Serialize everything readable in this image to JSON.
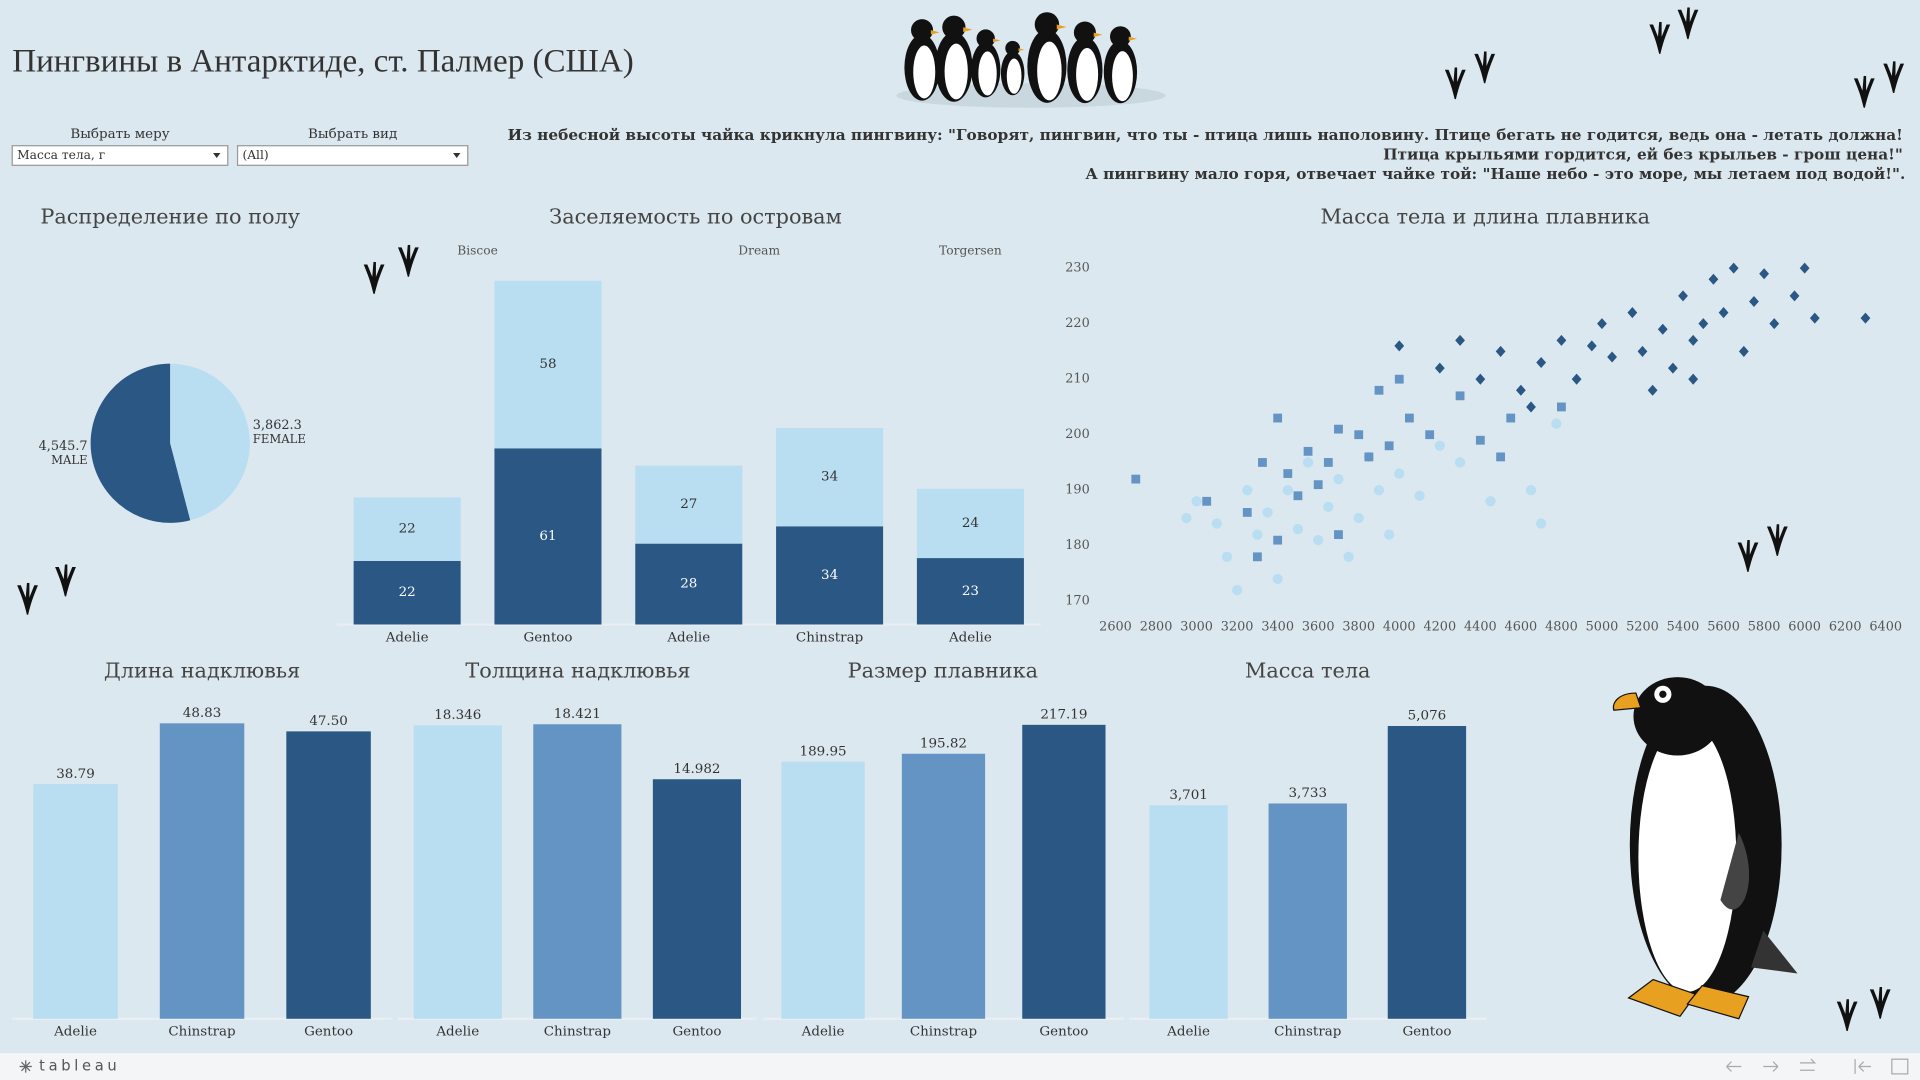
{
  "header": {
    "title": "Пингвины в Антарктиде, ст. Палмер (США)"
  },
  "filters": [
    {
      "label": "Выбрать меру",
      "value": "Масса тела, г"
    },
    {
      "label": "Выбрать вид",
      "value": "(All)"
    }
  ],
  "quote": [
    "Из небесной высоты чайка крикнула пингвину: \"Говорят, пингвин, что ты - птица лишь наполовину. Птице бегать не годится, ведь она - летать должна!",
    "Птица крыльями гордится, ей без крыльев - грош цена!\"",
    "А пингвину мало горя, отвечает чайке той: \"Наше небо - это море, мы летаем под водой!\"."
  ],
  "chart_data": [
    {
      "type": "pie",
      "title": "Распределение по полу",
      "categories": [
        "MALE",
        "FEMALE"
      ],
      "values": [
        4545.7,
        3862.3
      ],
      "value_labels": [
        "4,545.7",
        "3,862.3"
      ],
      "colors": [
        "#2a5783",
        "#b9ddf1"
      ]
    },
    {
      "type": "stacked_bar",
      "title": "Заселяемость по островам",
      "facets": [
        "Biscoe",
        null,
        "Dream",
        null,
        "Torgersen"
      ],
      "categories": [
        "Adelie",
        "Gentoo",
        "Adelie",
        "Chinstrap",
        "Adelie"
      ],
      "series": [
        {
          "color": "#2a5783",
          "values": [
            22,
            61,
            28,
            34,
            23
          ]
        },
        {
          "color": "#b9ddf1",
          "values": [
            22,
            58,
            27,
            34,
            24
          ]
        }
      ],
      "ylim": [
        0,
        120
      ]
    },
    {
      "type": "scatter",
      "title": "Масса тела и длина плавника",
      "xlim": [
        2600,
        6400
      ],
      "ylim": [
        167,
        233
      ],
      "xticks": [
        2600,
        2800,
        3000,
        3200,
        3400,
        3600,
        3800,
        4000,
        4200,
        4400,
        4600,
        4800,
        5000,
        5200,
        5400,
        5600,
        5800,
        6000,
        6200,
        6400
      ],
      "yticks": [
        170,
        180,
        190,
        200,
        210,
        220,
        230
      ],
      "series": [
        {
          "color": "#b9ddf1",
          "shape": "circle",
          "x": [
            2950,
            3000,
            3100,
            3150,
            3200,
            3250,
            3300,
            3350,
            3400,
            3450,
            3500,
            3550,
            3600,
            3650,
            3700,
            3750,
            3800,
            3850,
            3900,
            3950,
            4000,
            4100,
            4200,
            4300,
            4450,
            4650,
            4700,
            4775
          ],
          "values": [
            185,
            188,
            184,
            178,
            172,
            190,
            182,
            186,
            174,
            190,
            183,
            195,
            181,
            187,
            192,
            178,
            185,
            196,
            190,
            182,
            193,
            189,
            198,
            195,
            188,
            190,
            184,
            202
          ]
        },
        {
          "color": "#6494c3",
          "shape": "square",
          "x": [
            2700,
            3050,
            3250,
            3300,
            3325,
            3400,
            3450,
            3500,
            3550,
            3600,
            3650,
            3700,
            3800,
            3850,
            3900,
            3950,
            4000,
            4050,
            4150,
            4300,
            4400,
            4500,
            4550,
            4800,
            3400,
            3700
          ],
          "values": [
            192,
            188,
            186,
            178,
            195,
            203,
            193,
            189,
            197,
            191,
            195,
            201,
            200,
            196,
            208,
            198,
            210,
            203,
            200,
            207,
            199,
            196,
            203,
            205,
            181,
            182
          ]
        },
        {
          "color": "#2a5783",
          "shape": "diamond",
          "x": [
            4000,
            4200,
            4300,
            4400,
            4500,
            4600,
            4700,
            4800,
            4875,
            4950,
            5000,
            5050,
            5150,
            5200,
            5300,
            5350,
            5400,
            5450,
            5500,
            5550,
            5600,
            5650,
            5700,
            5750,
            5800,
            5850,
            5950,
            6000,
            6050,
            6300,
            5250,
            5450,
            4650
          ],
          "values": [
            216,
            212,
            217,
            210,
            215,
            208,
            213,
            217,
            210,
            216,
            220,
            214,
            222,
            215,
            219,
            212,
            225,
            217,
            220,
            228,
            222,
            230,
            215,
            224,
            229,
            220,
            225,
            230,
            221,
            221,
            208,
            210,
            205
          ]
        }
      ]
    },
    {
      "type": "bar",
      "title": "Длина надклювья",
      "categories": [
        "Adelie",
        "Chinstrap",
        "Gentoo"
      ],
      "values": [
        38.79,
        48.83,
        47.5
      ],
      "value_labels": [
        "38.79",
        "48.83",
        "47.50"
      ],
      "colors": [
        "#b9ddf1",
        "#6494c3",
        "#2a5783"
      ],
      "ylim": [
        0,
        51
      ]
    },
    {
      "type": "bar",
      "title": "Толщина надклювья",
      "categories": [
        "Adelie",
        "Chinstrap",
        "Gentoo"
      ],
      "values": [
        18.346,
        18.421,
        14.982
      ],
      "colors": [
        "#b9ddf1",
        "#6494c3",
        "#2a5783"
      ],
      "ylim": [
        0,
        19.3
      ]
    },
    {
      "type": "bar",
      "title": "Размер плавника",
      "categories": [
        "Adelie",
        "Chinstrap",
        "Gentoo"
      ],
      "values": [
        189.95,
        195.82,
        217.19
      ],
      "colors": [
        "#b9ddf1",
        "#6494c3",
        "#2a5783"
      ],
      "ylim": [
        0,
        228
      ]
    },
    {
      "type": "bar",
      "title": "Масса тела",
      "categories": [
        "Adelie",
        "Chinstrap",
        "Gentoo"
      ],
      "values": [
        3701,
        3733,
        5076
      ],
      "value_labels": [
        "3,701",
        "3,733",
        "5,076"
      ],
      "colors": [
        "#b9ddf1",
        "#6494c3",
        "#2a5783"
      ],
      "ylim": [
        0,
        5350
      ]
    }
  ],
  "footer": {
    "logo": "tableau"
  }
}
